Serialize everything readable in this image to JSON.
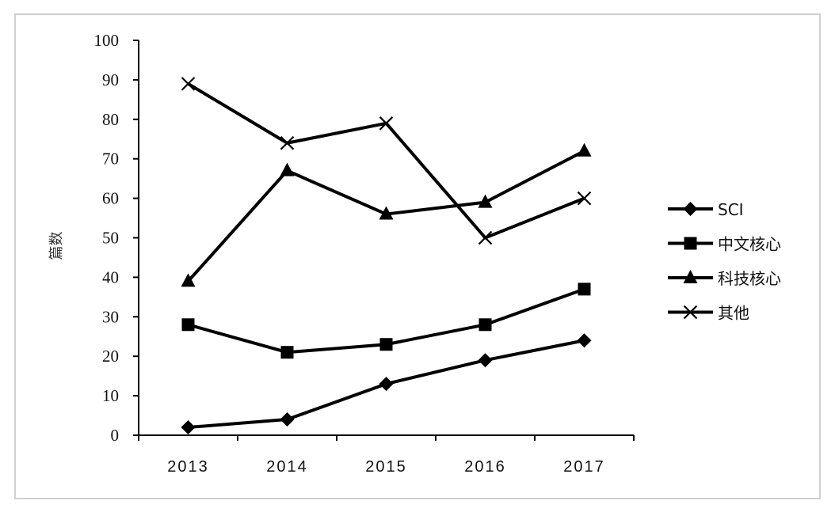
{
  "chart_data": {
    "type": "line",
    "categories": [
      "2013",
      "2014",
      "2015",
      "2016",
      "2017"
    ],
    "series": [
      {
        "name": "SCI",
        "marker": "diamond",
        "values": [
          2,
          4,
          13,
          19,
          24
        ]
      },
      {
        "name": "中文核心",
        "marker": "square",
        "values": [
          28,
          21,
          23,
          28,
          37
        ]
      },
      {
        "name": "科技核心",
        "marker": "triangle",
        "values": [
          39,
          67,
          56,
          59,
          72
        ]
      },
      {
        "name": "其他",
        "marker": "x",
        "values": [
          89,
          74,
          79,
          50,
          60
        ]
      }
    ],
    "ylabel": "篇数",
    "ylim": [
      0,
      100
    ],
    "yticks": [
      "0",
      "10",
      "20",
      "30",
      "40",
      "50",
      "60",
      "70",
      "80",
      "90",
      "100"
    ],
    "grid": false,
    "legend_position": "right",
    "line_color": "#000000"
  }
}
